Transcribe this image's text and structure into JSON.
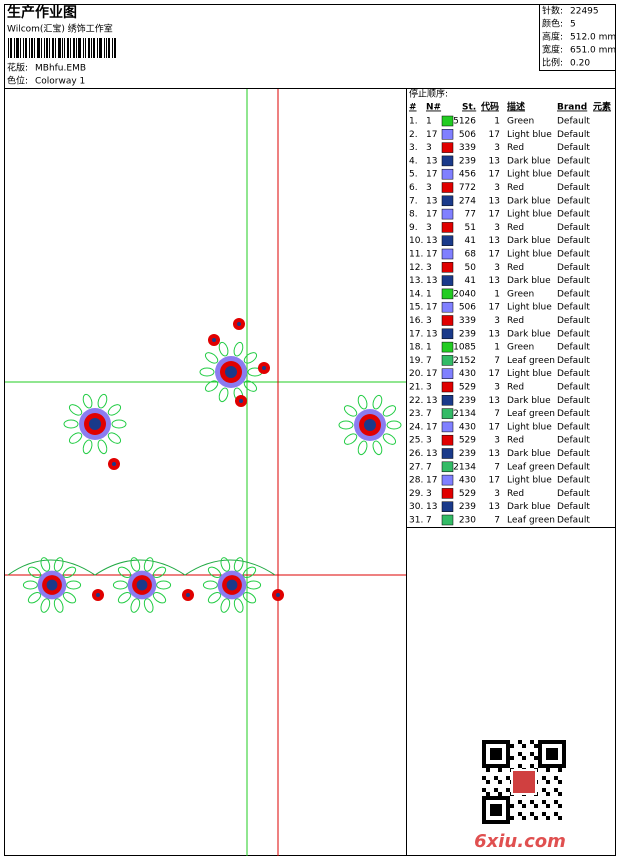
{
  "header": {
    "title": "生产作业图",
    "subtitle": "Wilcom(汇宝) 绣饰工作室",
    "design_label": "花版:",
    "design": "MBhfu.EMB",
    "colorway_label": "色位:",
    "colorway": "Colorway 1"
  },
  "stats": [
    [
      "针数:",
      "22495"
    ],
    [
      "颜色:",
      "5"
    ],
    [
      "高度:",
      "512.0 mm"
    ],
    [
      "宽度:",
      "651.0 mm"
    ],
    [
      "比例:",
      "0.20"
    ]
  ],
  "table": {
    "title": "停止顺序:",
    "columns": [
      "#",
      "N#",
      "St.",
      "代码",
      "描述",
      "Brand",
      "元素"
    ],
    "rows": [
      [
        "1.",
        "1",
        "#22cc22",
        "5126",
        "1",
        "Green",
        "Default"
      ],
      [
        "2.",
        "17",
        "#8080ff",
        "506",
        "17",
        "Light blue",
        "Default"
      ],
      [
        "3.",
        "3",
        "#e00000",
        "339",
        "3",
        "Red",
        "Default"
      ],
      [
        "4.",
        "13",
        "#1a3a8a",
        "239",
        "13",
        "Dark blue",
        "Default"
      ],
      [
        "5.",
        "17",
        "#8080ff",
        "456",
        "17",
        "Light blue",
        "Default"
      ],
      [
        "6.",
        "3",
        "#e00000",
        "772",
        "3",
        "Red",
        "Default"
      ],
      [
        "7.",
        "13",
        "#1a3a8a",
        "274",
        "13",
        "Dark blue",
        "Default"
      ],
      [
        "8.",
        "17",
        "#8080ff",
        "77",
        "17",
        "Light blue",
        "Default"
      ],
      [
        "9.",
        "3",
        "#e00000",
        "51",
        "3",
        "Red",
        "Default"
      ],
      [
        "10.",
        "13",
        "#1a3a8a",
        "41",
        "13",
        "Dark blue",
        "Default"
      ],
      [
        "11.",
        "17",
        "#8080ff",
        "68",
        "17",
        "Light blue",
        "Default"
      ],
      [
        "12.",
        "3",
        "#e00000",
        "50",
        "3",
        "Red",
        "Default"
      ],
      [
        "13.",
        "13",
        "#1a3a8a",
        "41",
        "13",
        "Dark blue",
        "Default"
      ],
      [
        "14.",
        "1",
        "#22cc22",
        "2040",
        "1",
        "Green",
        "Default"
      ],
      [
        "15.",
        "17",
        "#8080ff",
        "506",
        "17",
        "Light blue",
        "Default"
      ],
      [
        "16.",
        "3",
        "#e00000",
        "339",
        "3",
        "Red",
        "Default"
      ],
      [
        "17.",
        "13",
        "#1a3a8a",
        "239",
        "13",
        "Dark blue",
        "Default"
      ],
      [
        "18.",
        "1",
        "#22cc22",
        "1085",
        "1",
        "Green",
        "Default"
      ],
      [
        "19.",
        "7",
        "#33bb66",
        "2152",
        "7",
        "Leaf green",
        "Default"
      ],
      [
        "20.",
        "17",
        "#8080ff",
        "430",
        "17",
        "Light blue",
        "Default"
      ],
      [
        "21.",
        "3",
        "#e00000",
        "529",
        "3",
        "Red",
        "Default"
      ],
      [
        "22.",
        "13",
        "#1a3a8a",
        "239",
        "13",
        "Dark blue",
        "Default"
      ],
      [
        "23.",
        "7",
        "#33bb66",
        "2134",
        "7",
        "Leaf green",
        "Default"
      ],
      [
        "24.",
        "17",
        "#8080ff",
        "430",
        "17",
        "Light blue",
        "Default"
      ],
      [
        "25.",
        "3",
        "#e00000",
        "529",
        "3",
        "Red",
        "Default"
      ],
      [
        "26.",
        "13",
        "#1a3a8a",
        "239",
        "13",
        "Dark blue",
        "Default"
      ],
      [
        "27.",
        "7",
        "#33bb66",
        "2134",
        "7",
        "Leaf green",
        "Default"
      ],
      [
        "28.",
        "17",
        "#8080ff",
        "430",
        "17",
        "Light blue",
        "Default"
      ],
      [
        "29.",
        "3",
        "#e00000",
        "529",
        "3",
        "Red",
        "Default"
      ],
      [
        "30.",
        "13",
        "#1a3a8a",
        "239",
        "13",
        "Dark blue",
        "Default"
      ],
      [
        "31.",
        "7",
        "#33bb66",
        "230",
        "7",
        "Leaf green",
        "Default"
      ]
    ]
  },
  "watermark": "6xiu.com"
}
